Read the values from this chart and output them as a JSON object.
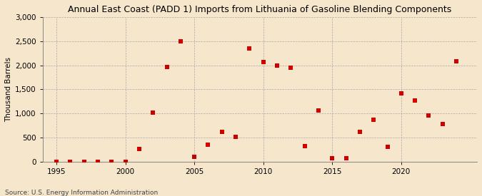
{
  "title": "Annual East Coast (PADD 1) Imports from Lithuania of Gasoline Blending Components",
  "ylabel": "Thousand Barrels",
  "source": "Source: U.S. Energy Information Administration",
  "years": [
    1995,
    1996,
    1997,
    1998,
    1999,
    2000,
    2001,
    2002,
    2003,
    2004,
    2005,
    2006,
    2007,
    2008,
    2009,
    2010,
    2011,
    2012,
    2013,
    2014,
    2015,
    2016,
    2017,
    2018,
    2019,
    2020,
    2021,
    2022,
    2023,
    2024
  ],
  "values": [
    0,
    0,
    0,
    0,
    0,
    0,
    270,
    1020,
    1970,
    2500,
    110,
    350,
    620,
    510,
    2350,
    2070,
    2000,
    1950,
    330,
    1070,
    80,
    80,
    620,
    870,
    310,
    1420,
    1270,
    960,
    780,
    2080
  ],
  "marker_color": "#cc0000",
  "marker_size": 18,
  "background_color": "#f5e6cc",
  "grid_color": "#aaaaaa",
  "ylim": [
    0,
    3000
  ],
  "yticks": [
    0,
    500,
    1000,
    1500,
    2000,
    2500,
    3000
  ],
  "xlim": [
    1994.0,
    2025.5
  ],
  "xticks": [
    1995,
    2000,
    2005,
    2010,
    2015,
    2020
  ],
  "title_fontsize": 9.0,
  "tick_fontsize": 7.5,
  "ylabel_fontsize": 7.5,
  "source_fontsize": 6.5
}
